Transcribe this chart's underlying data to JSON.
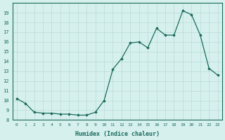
{
  "x": [
    0,
    1,
    2,
    3,
    4,
    5,
    6,
    7,
    8,
    9,
    10,
    11,
    12,
    13,
    14,
    15,
    16,
    17,
    18,
    19,
    20,
    21,
    22,
    23
  ],
  "y": [
    10.2,
    9.7,
    8.8,
    8.7,
    8.7,
    8.6,
    8.6,
    8.5,
    8.5,
    8.8,
    10.0,
    13.2,
    14.3,
    15.9,
    16.0,
    15.4,
    17.4,
    16.7,
    16.7,
    19.2,
    18.8,
    16.7,
    13.3,
    12.6
  ],
  "xlabel": "Humidex (Indice chaleur)",
  "xlim": [
    -0.5,
    23.5
  ],
  "ylim": [
    8,
    20
  ],
  "yticks": [
    8,
    9,
    10,
    11,
    12,
    13,
    14,
    15,
    16,
    17,
    18,
    19
  ],
  "xticks": [
    0,
    1,
    2,
    3,
    4,
    5,
    6,
    7,
    8,
    9,
    10,
    11,
    12,
    13,
    14,
    15,
    16,
    17,
    18,
    19,
    20,
    21,
    22,
    23
  ],
  "line_color": "#1a6b5a",
  "bg_color": "#d6f0ee",
  "grid_color": "#b8dbd8"
}
